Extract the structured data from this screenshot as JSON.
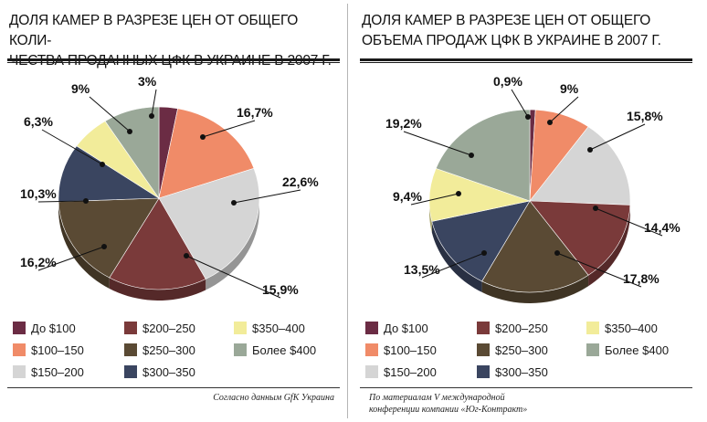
{
  "chart_data": [
    {
      "type": "pie",
      "title": "ДОЛЯ КАМЕР В РАЗРЕЗЕ ЦЕН ОТ ОБЩЕГО КОЛИЧЕСТВА ПРОДАННЫХ ЦФК В УКРАИНЕ В 2007 г.",
      "title_lines": [
        "ДОЛЯ КАМЕР В РАЗРЕЗЕ ЦЕН ОТ ОБЩЕГО КОЛИ-",
        "ЧЕСТВА ПРОДАННЫХ ЦФК В УКРАИНЕ В 2007 г."
      ],
      "slices": [
        {
          "category": "До $100",
          "value": 3,
          "label": "3%",
          "color": "#6b2c44"
        },
        {
          "category": "$100–150",
          "value": 16.7,
          "label": "16,7%",
          "color": "#f08b68"
        },
        {
          "category": "$150–200",
          "value": 22.6,
          "label": "22,6%",
          "color": "#d5d5d5"
        },
        {
          "category": "$200–250",
          "value": 15.9,
          "label": "15,9%",
          "color": "#7a3a3a"
        },
        {
          "category": "$250–300",
          "value": 16.2,
          "label": "16,2%",
          "color": "#5a4a34"
        },
        {
          "category": "$300–350",
          "value": 10.3,
          "label": "10,3%",
          "color": "#3a4560"
        },
        {
          "category": "$350–400",
          "value": 6.3,
          "label": "6,3%",
          "color": "#f2ec9a"
        },
        {
          "category": "Более $400",
          "value": 9,
          "label": "9%",
          "color": "#9aa898"
        }
      ],
      "source": "Согласно данным GfK Украина"
    },
    {
      "type": "pie",
      "title": "ДОЛЯ КАМЕР В РАЗРЕЗЕ ЦЕН ОТ ОБЩЕГО ОБЪЕМА ПРОДАЖ ЦФК В УКРАИНЕ В 2007 г.",
      "title_lines": [
        "ДОЛЯ КАМЕР В РАЗРЕЗЕ ЦЕН ОТ ОБЩЕГО",
        "ОБЪЕМА ПРОДАЖ ЦФК В УКРАИНЕ В 2007 г."
      ],
      "slices": [
        {
          "category": "До $100",
          "value": 0.9,
          "label": "0,9%",
          "color": "#6b2c44"
        },
        {
          "category": "$100–150",
          "value": 9,
          "label": "9%",
          "color": "#f08b68"
        },
        {
          "category": "$150–200",
          "value": 15.8,
          "label": "15,8%",
          "color": "#d5d5d5"
        },
        {
          "category": "$200–250",
          "value": 14.4,
          "label": "14,4%",
          "color": "#7a3a3a"
        },
        {
          "category": "$250–300",
          "value": 17.8,
          "label": "17,8%",
          "color": "#5a4a34"
        },
        {
          "category": "$300–350",
          "value": 13.5,
          "label": "13,5%",
          "color": "#3a4560"
        },
        {
          "category": "$350–400",
          "value": 9.4,
          "label": "9,4%",
          "color": "#f2ec9a"
        },
        {
          "category": "Более $400",
          "value": 19.2,
          "label": "19,2%",
          "color": "#9aa898"
        }
      ],
      "source_lines": [
        "По материалам V международной",
        "конференции компании «Юг-Контракт»"
      ]
    }
  ],
  "legend": [
    {
      "label": "До $100",
      "color": "#6b2c44"
    },
    {
      "label": "$100–150",
      "color": "#f08b68"
    },
    {
      "label": "$150–200",
      "color": "#d5d5d5"
    },
    {
      "label": "$200–250",
      "color": "#7a3a3a"
    },
    {
      "label": "$250–300",
      "color": "#5a4a34"
    },
    {
      "label": "$300–350",
      "color": "#3a4560"
    },
    {
      "label": "$350–400",
      "color": "#f2ec9a"
    },
    {
      "label": "Более $400",
      "color": "#9aa898"
    }
  ]
}
